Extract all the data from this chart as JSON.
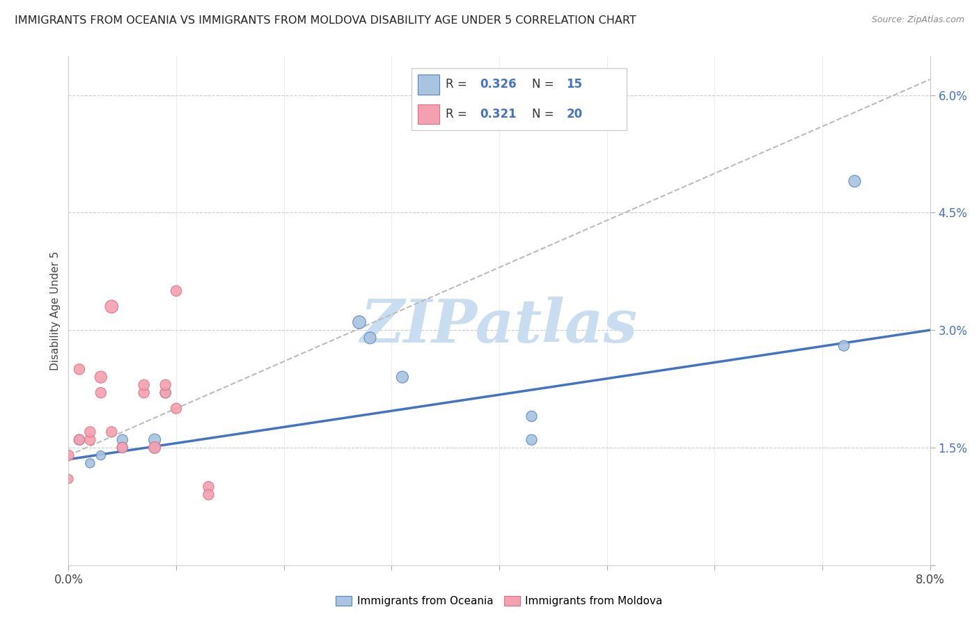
{
  "title": "IMMIGRANTS FROM OCEANIA VS IMMIGRANTS FROM MOLDOVA DISABILITY AGE UNDER 5 CORRELATION CHART",
  "source": "Source: ZipAtlas.com",
  "ylabel": "Disability Age Under 5",
  "xmin": 0.0,
  "xmax": 0.08,
  "ymin": 0.0,
  "ymax": 0.065,
  "yticks": [
    0.0,
    0.015,
    0.03,
    0.045,
    0.06
  ],
  "ytick_labels": [
    "",
    "1.5%",
    "3.0%",
    "4.5%",
    "6.0%"
  ],
  "oceania_x": [
    0.001,
    0.002,
    0.003,
    0.005,
    0.005,
    0.008,
    0.008,
    0.009,
    0.027,
    0.028,
    0.031,
    0.043,
    0.043,
    0.072,
    0.073
  ],
  "oceania_y": [
    0.016,
    0.013,
    0.014,
    0.016,
    0.015,
    0.016,
    0.015,
    0.022,
    0.031,
    0.029,
    0.024,
    0.019,
    0.016,
    0.028,
    0.049
  ],
  "oceania_sizes": [
    120,
    90,
    90,
    120,
    120,
    150,
    120,
    120,
    180,
    150,
    150,
    120,
    120,
    120,
    150
  ],
  "moldova_x": [
    0.0,
    0.0,
    0.001,
    0.001,
    0.002,
    0.002,
    0.003,
    0.003,
    0.004,
    0.004,
    0.005,
    0.007,
    0.007,
    0.008,
    0.009,
    0.009,
    0.01,
    0.01,
    0.013,
    0.013
  ],
  "moldova_y": [
    0.014,
    0.011,
    0.016,
    0.025,
    0.016,
    0.017,
    0.022,
    0.024,
    0.017,
    0.033,
    0.015,
    0.022,
    0.023,
    0.015,
    0.022,
    0.023,
    0.035,
    0.02,
    0.01,
    0.009
  ],
  "moldova_sizes": [
    120,
    90,
    120,
    120,
    120,
    120,
    120,
    150,
    120,
    180,
    120,
    120,
    120,
    150,
    120,
    120,
    120,
    120,
    120,
    120
  ],
  "oceania_color": "#a8c4e0",
  "moldova_color": "#f4a0b0",
  "oceania_edge_color": "#5585c8",
  "moldova_edge_color": "#e07080",
  "oceania_line_color": "#4472c4",
  "moldova_line_color": "#d4849a",
  "grid_color": "#cccccc",
  "watermark_color": "#c8ddf0",
  "R_oceania": "0.326",
  "N_oceania": "15",
  "R_moldova": "0.321",
  "N_moldova": "20",
  "oceania_trend_x": [
    0.0,
    0.08
  ],
  "oceania_trend_y": [
    0.0135,
    0.03
  ],
  "moldova_trend_x": [
    0.0,
    0.08
  ],
  "moldova_trend_y": [
    0.014,
    0.062
  ]
}
